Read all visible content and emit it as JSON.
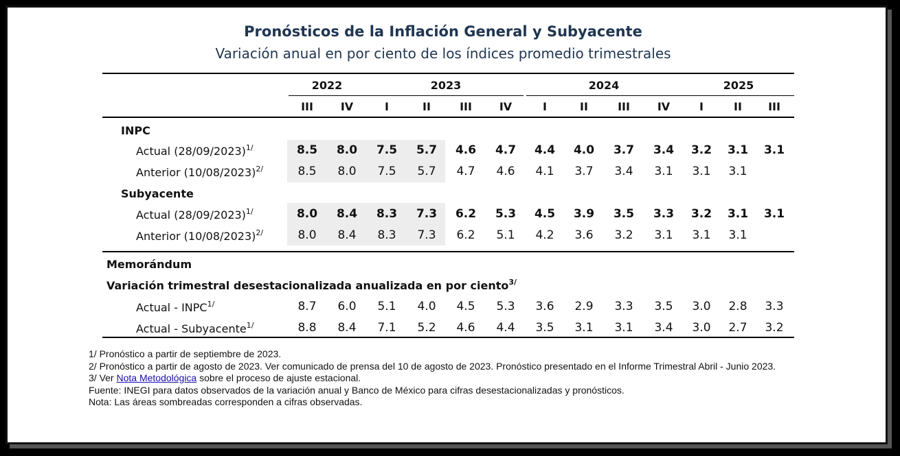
{
  "title": "Pronósticos de la Inflación General y Subyacente",
  "subtitle": "Variación anual en por ciento de los índices promedio trimestrales",
  "years": [
    "2022",
    "2023",
    "2024",
    "2025"
  ],
  "quarters": [
    "III",
    "IV",
    "I",
    "II",
    "III",
    "IV",
    "I",
    "II",
    "III",
    "IV",
    "I",
    "II",
    "III"
  ],
  "sections": {
    "inpc": "INPC",
    "subyacente": "Subyacente",
    "memorandum": "Memorándum",
    "variacion": "Variación trimestral desestacionalizada anualizada en por ciento",
    "variacion_sup": "3/"
  },
  "rows": {
    "inpc_actual": {
      "label": "Actual (28/09/2023)",
      "sup": "1/",
      "values": [
        "8.5",
        "8.0",
        "7.5",
        "5.7",
        "4.6",
        "4.7",
        "4.4",
        "4.0",
        "3.7",
        "3.4",
        "3.2",
        "3.1",
        "3.1"
      ]
    },
    "inpc_anterior": {
      "label": "Anterior (10/08/2023)",
      "sup": "2/",
      "values": [
        "8.5",
        "8.0",
        "7.5",
        "5.7",
        "4.7",
        "4.6",
        "4.1",
        "3.7",
        "3.4",
        "3.1",
        "3.1",
        "3.1",
        ""
      ]
    },
    "sub_actual": {
      "label": "Actual (28/09/2023)",
      "sup": "1/",
      "values": [
        "8.0",
        "8.4",
        "8.3",
        "7.3",
        "6.2",
        "5.3",
        "4.5",
        "3.9",
        "3.5",
        "3.3",
        "3.2",
        "3.1",
        "3.1"
      ]
    },
    "sub_anterior": {
      "label": "Anterior (10/08/2023)",
      "sup": "2/",
      "values": [
        "8.0",
        "8.4",
        "8.3",
        "7.3",
        "6.2",
        "5.1",
        "4.2",
        "3.6",
        "3.2",
        "3.1",
        "3.1",
        "3.1",
        ""
      ]
    },
    "mem_inpc": {
      "label": "Actual - INPC",
      "sup": "1/",
      "values": [
        "8.7",
        "6.0",
        "5.1",
        "4.0",
        "4.5",
        "5.3",
        "3.6",
        "2.9",
        "3.3",
        "3.5",
        "3.0",
        "2.8",
        "3.3"
      ]
    },
    "mem_sub": {
      "label": "Actual - Subyacente",
      "sup": "1/",
      "values": [
        "8.8",
        "8.4",
        "7.1",
        "5.2",
        "4.6",
        "4.4",
        "3.5",
        "3.1",
        "3.1",
        "3.4",
        "3.0",
        "2.7",
        "3.2"
      ]
    }
  },
  "notes": {
    "n1": "1/ Pronóstico a partir de septiembre de 2023.",
    "n2": "2/ Pronóstico a partir de agosto de 2023. Ver comunicado de prensa del 10 de agosto de 2023. Pronóstico presentado en el Informe Trimestral Abril - Junio 2023.",
    "n3_pre": "3/ Ver",
    "n3_link": "Nota Metodológica",
    "n3_post": "sobre el proceso de ajuste estacional.",
    "fuente": "Fuente: INEGI para datos observados de la variación anual y Banco de México para cifras desestacionalizadas y pronósticos.",
    "nota": "Nota: Las áreas sombreadas corresponden a cifras observadas."
  }
}
